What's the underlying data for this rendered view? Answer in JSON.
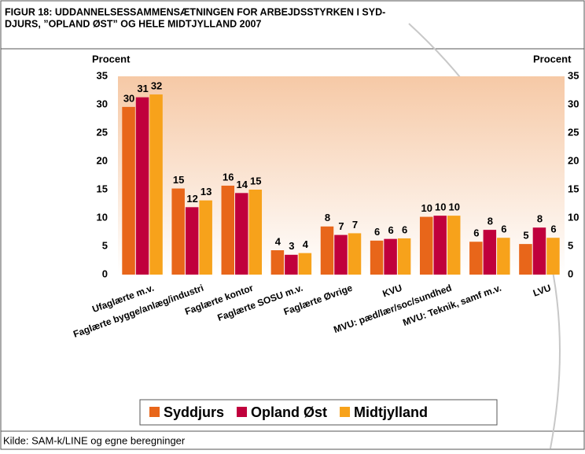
{
  "chart_data": {
    "type": "bar",
    "title": [
      "FIGUR 18: UDDANNELSESSAMMENSÆTNINGEN FOR ARBEJDSSTYRKEN I SYD-",
      "DJURS, ”OPLAND ØST” OG HELE MIDTJYLLAND 2007"
    ],
    "y_label": "Procent",
    "y2_label": "Procent",
    "source": "Kilde: SAM-k/LINE og egne beregninger",
    "categories": [
      "Ufaglærte m.v.",
      "Faglærte bygge/anlæg/industri",
      "Faglærte kontor",
      "Faglærte SOSU m.v.",
      "Faglærte Øvrige",
      "KVU",
      "MVU: pæd/lær/soc/sundhed",
      "MVU: Teknik, samf m.v.",
      "LVU"
    ],
    "series": [
      {
        "name": "Syddjurs",
        "color": "#e8661a",
        "values": [
          29.6,
          15.2,
          15.7,
          4.3,
          8.5,
          6.0,
          10.2,
          5.8,
          5.4
        ],
        "value_labels": [
          "30",
          "15",
          "16",
          "4",
          "8",
          "6",
          "10",
          "6",
          "5"
        ]
      },
      {
        "name": "Opland Øst",
        "color": "#c0003c",
        "values": [
          31.3,
          11.9,
          14.4,
          3.5,
          7.0,
          6.3,
          10.4,
          7.9,
          8.3
        ],
        "value_labels": [
          "31",
          "12",
          "14",
          "3",
          "7",
          "6",
          "10",
          "8",
          "8"
        ]
      },
      {
        "name": "Midtjylland",
        "color": "#f7a21b",
        "values": [
          31.8,
          13.1,
          15.0,
          3.8,
          7.3,
          6.4,
          10.4,
          6.5,
          6.5
        ],
        "value_labels": [
          "32",
          "13",
          "15",
          "4",
          "7",
          "6",
          "10",
          "6",
          "6"
        ]
      }
    ],
    "ylim": [
      0,
      35
    ],
    "yticks": [
      0,
      5,
      10,
      15,
      20,
      25,
      30,
      35
    ],
    "y2lim": [
      0,
      35
    ],
    "y2ticks": [
      0,
      5,
      10,
      15,
      20,
      25,
      30,
      35
    ],
    "grid": false,
    "legend": "bottom"
  }
}
